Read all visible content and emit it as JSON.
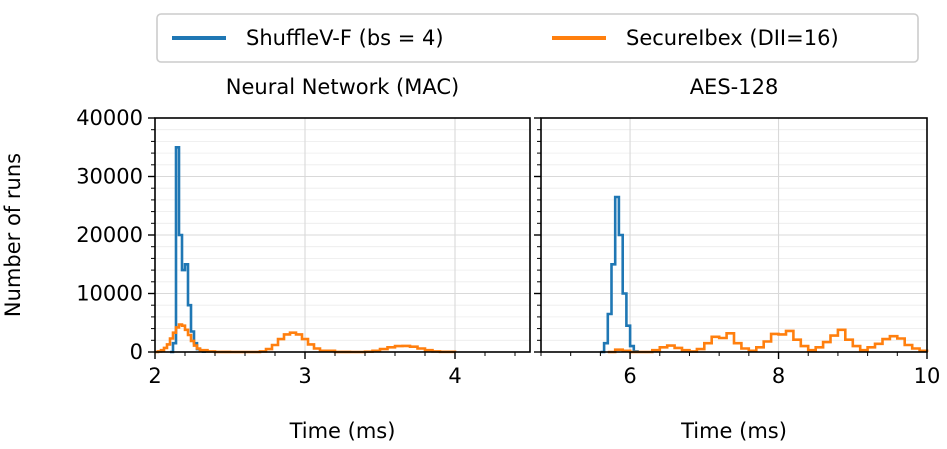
{
  "legend": {
    "placement": "top-center",
    "entries": [
      {
        "name": "ShuffleV-F (bs = 4)",
        "color": "#1f77b4"
      },
      {
        "name": "SecureIbex (DII=16)",
        "color": "#ff7f0e"
      }
    ]
  },
  "chart_data": [
    {
      "type": "histogram",
      "title": "Neural Network (MAC)",
      "xlabel": "Time (ms)",
      "ylabel": "Number of runs",
      "xlim": [
        2.0,
        4.5
      ],
      "ylim": [
        0,
        40000
      ],
      "xticks": [
        2,
        3,
        4
      ],
      "yticks": [
        0,
        10000,
        20000,
        30000,
        40000
      ],
      "grid": true,
      "series": [
        {
          "name": "ShuffleV-F (bs = 4)",
          "color": "#1f77b4",
          "x": [
            2.1,
            2.12,
            2.14,
            2.16,
            2.18,
            2.2,
            2.22,
            2.24,
            2.26,
            2.28,
            2.3,
            2.32,
            2.34
          ],
          "y": [
            0,
            1500,
            35000,
            20000,
            14000,
            15000,
            8000,
            3500,
            1500,
            500,
            200,
            50,
            0
          ]
        },
        {
          "name": "SecureIbex (DII=16)",
          "color": "#ff7f0e",
          "x": [
            2.0,
            2.02,
            2.04,
            2.06,
            2.08,
            2.1,
            2.12,
            2.14,
            2.16,
            2.18,
            2.2,
            2.22,
            2.24,
            2.26,
            2.28,
            2.3,
            2.35,
            2.4,
            2.5,
            2.6,
            2.7,
            2.74,
            2.78,
            2.82,
            2.86,
            2.9,
            2.94,
            2.98,
            3.02,
            3.06,
            3.1,
            3.2,
            3.3,
            3.4,
            3.45,
            3.5,
            3.55,
            3.6,
            3.65,
            3.7,
            3.75,
            3.8,
            3.85,
            3.9,
            4.0
          ],
          "y": [
            0,
            100,
            300,
            700,
            1300,
            2300,
            3300,
            4200,
            4700,
            4500,
            3800,
            2900,
            1900,
            1100,
            600,
            300,
            100,
            20,
            0,
            0,
            100,
            500,
            1200,
            2200,
            3000,
            3300,
            3000,
            2200,
            1300,
            600,
            200,
            20,
            0,
            50,
            200,
            500,
            800,
            1000,
            1050,
            900,
            600,
            300,
            100,
            30,
            0
          ]
        }
      ]
    },
    {
      "type": "histogram",
      "title": "AES-128",
      "xlabel": "Time (ms)",
      "ylabel": "",
      "xlim": [
        4.8,
        10.0
      ],
      "ylim": [
        0,
        40000
      ],
      "xticks": [
        6,
        8,
        10
      ],
      "yticks": [
        0,
        10000,
        20000,
        30000,
        40000
      ],
      "grid": true,
      "series": [
        {
          "name": "ShuffleV-F (bs = 4)",
          "color": "#1f77b4",
          "x": [
            5.6,
            5.65,
            5.7,
            5.75,
            5.8,
            5.85,
            5.9,
            5.95,
            6.0,
            6.05,
            6.1
          ],
          "y": [
            0,
            1500,
            6500,
            15000,
            26500,
            20000,
            10000,
            4500,
            1000,
            100,
            0
          ]
        },
        {
          "name": "SecureIbex (DII=16)",
          "color": "#ff7f0e",
          "x": [
            5.7,
            5.8,
            5.9,
            6.0,
            6.1,
            6.2,
            6.3,
            6.4,
            6.5,
            6.6,
            6.7,
            6.8,
            6.9,
            7.0,
            7.1,
            7.2,
            7.3,
            7.4,
            7.5,
            7.6,
            7.7,
            7.8,
            7.9,
            8.0,
            8.1,
            8.2,
            8.3,
            8.4,
            8.5,
            8.6,
            8.7,
            8.8,
            8.9,
            9.0,
            9.1,
            9.2,
            9.3,
            9.4,
            9.5,
            9.6,
            9.7,
            9.8,
            9.9,
            10.0
          ],
          "y": [
            0,
            400,
            200,
            0,
            0,
            0,
            300,
            800,
            1100,
            700,
            300,
            100,
            500,
            1500,
            2600,
            2400,
            3200,
            1500,
            600,
            200,
            800,
            1800,
            3100,
            3000,
            3600,
            2100,
            1000,
            300,
            800,
            1700,
            2800,
            3800,
            2100,
            1000,
            300,
            800,
            1400,
            2200,
            2700,
            2300,
            1200,
            600,
            200,
            0
          ]
        }
      ]
    }
  ]
}
